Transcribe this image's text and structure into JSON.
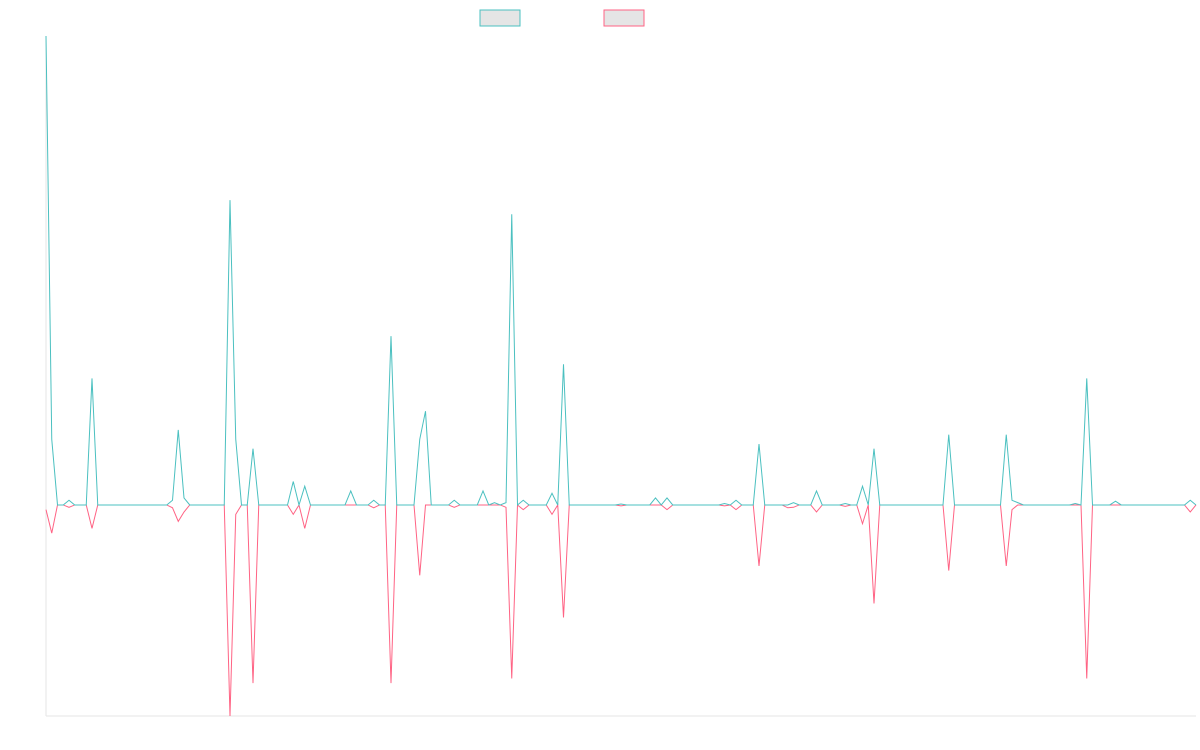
{
  "chart_data": {
    "type": "line",
    "legend": "top",
    "ylim": [
      -0.45,
      1
    ],
    "categories": [
      null,
      null,
      null,
      null,
      null,
      null,
      null,
      null,
      null,
      null,
      null,
      null,
      null,
      null,
      null,
      null,
      null,
      null,
      null,
      null,
      null,
      null,
      null,
      null,
      null,
      null,
      null,
      null,
      null,
      null,
      null,
      null,
      null,
      null,
      null,
      null,
      null,
      null,
      null,
      null,
      null,
      null,
      null,
      null,
      null,
      null,
      null,
      null,
      null,
      null,
      null,
      null,
      null,
      null,
      null,
      null,
      null,
      null,
      null,
      null,
      null,
      null,
      null,
      null,
      null,
      null,
      null,
      null,
      null,
      null,
      null,
      null,
      null,
      null,
      null,
      null,
      null,
      null,
      null,
      null,
      null,
      null,
      null,
      null,
      null,
      null,
      null,
      null,
      null,
      null,
      null,
      null,
      null,
      null,
      null,
      null,
      null,
      null,
      null,
      null,
      null,
      null,
      null,
      null,
      null,
      null,
      null,
      null,
      null,
      null,
      null,
      null,
      null,
      null,
      null,
      null,
      null,
      null,
      null,
      null,
      null,
      null,
      null,
      null,
      null,
      null,
      null,
      null,
      null,
      null,
      null,
      null,
      null,
      null,
      null,
      null,
      null,
      null,
      null,
      null,
      null,
      null,
      null,
      null,
      null,
      null,
      null,
      null,
      null,
      null,
      null,
      null,
      null,
      null,
      null,
      null,
      null,
      null,
      null,
      null,
      null,
      null,
      null,
      null,
      null,
      null,
      null,
      null,
      null,
      null,
      null,
      null,
      null,
      null,
      null,
      null,
      null,
      null,
      null,
      null,
      null,
      null,
      null,
      null,
      null,
      null,
      null,
      null,
      null,
      null,
      null,
      null,
      null,
      null,
      null,
      null,
      null,
      null,
      null,
      null,
      null
    ],
    "series": [
      {
        "color": "#4bc0c0",
        "values": [
          1.0,
          0.14,
          0,
          0,
          0.01,
          0,
          0,
          0,
          0.27,
          0,
          0,
          0,
          0,
          0,
          0,
          0,
          0,
          0,
          0,
          0,
          0,
          0,
          0.01,
          0.16,
          0.015,
          0,
          0,
          0,
          0,
          0,
          0,
          0,
          0.65,
          0.14,
          0,
          0,
          0.12,
          0,
          0,
          0,
          0,
          0,
          0,
          0.05,
          0,
          0.04,
          0,
          0,
          0,
          0,
          0,
          0,
          0,
          0.03,
          0,
          0,
          0,
          0.01,
          0,
          0,
          0.36,
          0,
          0,
          0,
          0,
          0.14,
          0.2,
          0,
          0,
          0,
          0,
          0.01,
          0,
          0,
          0,
          0,
          0.03,
          0,
          0.005,
          0,
          0.005,
          0.62,
          0,
          0.01,
          0,
          0,
          0,
          0,
          0.025,
          0,
          0.3,
          0,
          0,
          0,
          0,
          0,
          0,
          0,
          0,
          0,
          0.002,
          0,
          0,
          0,
          0,
          0,
          0.015,
          0,
          0.015,
          0,
          0,
          0,
          0,
          0,
          0,
          0,
          0,
          0,
          0.003,
          0,
          0.01,
          0,
          0,
          0,
          0.13,
          0,
          0,
          0,
          0,
          0,
          0.005,
          0,
          0,
          0,
          0.03,
          0,
          0,
          0,
          0,
          0.003,
          0,
          0,
          0.04,
          0,
          0.12,
          0,
          0,
          0,
          0,
          0,
          0,
          0,
          0,
          0,
          0,
          0,
          0,
          0.15,
          0,
          0,
          0,
          0,
          0,
          0,
          0,
          0,
          0,
          0.15,
          0.01,
          0.005,
          0,
          0,
          0,
          0,
          0,
          0,
          0,
          0,
          0,
          0.003,
          0,
          0.27,
          0,
          0,
          0,
          0,
          0.008,
          0,
          0,
          0,
          0,
          0,
          0,
          0,
          0,
          0,
          0,
          0,
          0,
          0.01,
          0
        ]
      },
      {
        "color": "#ff6384",
        "values": [
          -0.01,
          -0.06,
          0,
          0,
          -0.005,
          0,
          0,
          0,
          -0.05,
          0,
          0,
          0,
          0,
          0,
          0,
          0,
          0,
          0,
          0,
          0,
          0,
          0,
          -0.006,
          -0.035,
          -0.015,
          0,
          0,
          0,
          0,
          0,
          0,
          0,
          -0.45,
          -0.02,
          0,
          0,
          -0.38,
          0,
          0,
          0,
          0,
          0,
          0,
          -0.02,
          0,
          -0.05,
          0,
          0,
          0,
          0,
          0,
          0,
          0,
          0,
          0,
          0,
          0,
          -0.006,
          0,
          0,
          -0.38,
          0,
          0,
          0,
          0,
          -0.15,
          0,
          0,
          0,
          0,
          0,
          -0.005,
          0,
          0,
          0,
          0,
          0,
          0,
          0,
          0,
          -0.005,
          -0.37,
          0,
          -0.01,
          0,
          0,
          0,
          0,
          -0.02,
          0,
          -0.24,
          0,
          0,
          0,
          0,
          0,
          0,
          0,
          0,
          0,
          -0.002,
          0,
          0,
          0,
          0,
          0,
          0,
          0,
          -0.01,
          0,
          0,
          0,
          0,
          0,
          0,
          0,
          0,
          0,
          -0.002,
          0,
          -0.01,
          0,
          0,
          0,
          -0.13,
          0,
          0,
          0,
          0,
          -0.006,
          -0.005,
          0,
          0,
          0,
          -0.015,
          0,
          0,
          0,
          0,
          -0.003,
          0,
          0,
          -0.04,
          0,
          -0.21,
          0,
          0,
          0,
          0,
          0,
          0,
          0,
          0,
          0,
          0,
          0,
          0,
          -0.14,
          0,
          0,
          0,
          0,
          0,
          0,
          0,
          0,
          0,
          -0.13,
          -0.01,
          0,
          0,
          0,
          0,
          0,
          0,
          0,
          0,
          0,
          0,
          0,
          0,
          -0.37,
          0,
          0,
          0,
          0,
          0,
          0,
          0,
          0,
          0,
          0,
          0,
          0,
          0,
          0,
          0,
          0,
          0,
          -0.015,
          0
        ]
      }
    ]
  }
}
